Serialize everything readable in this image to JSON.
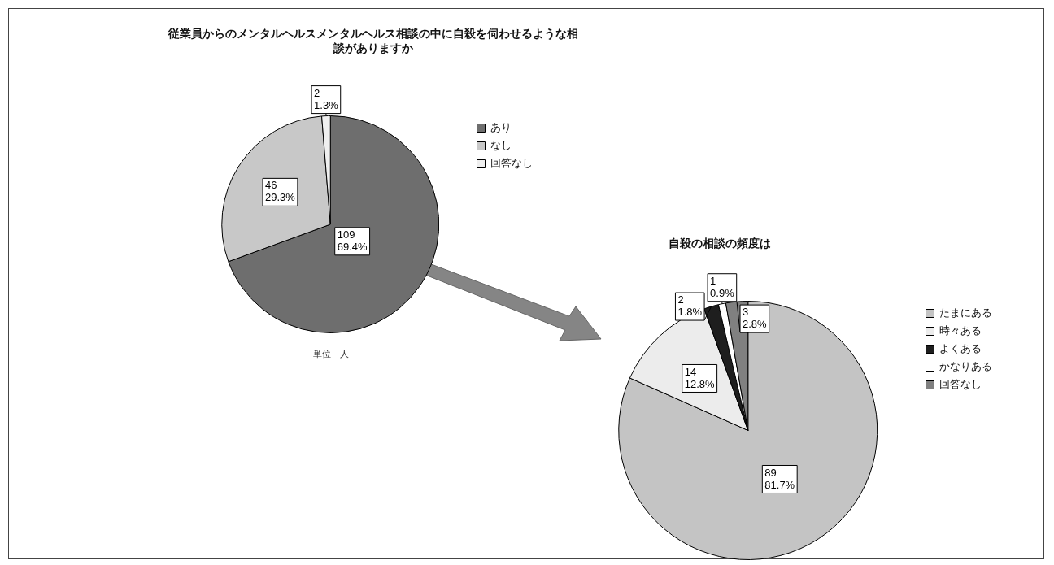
{
  "chart_data": [
    {
      "type": "pie",
      "title": "従業員からのメンタルヘルスメンタルヘルス相談の中に自殺を伺わせるような相談がありますか",
      "categories": [
        "あり",
        "なし",
        "回答なし"
      ],
      "values": [
        109,
        46,
        2
      ],
      "colors": [
        "#6e6e6e",
        "#c8c8c8",
        "#efefef"
      ],
      "value_labels": [
        "109\n69.4%",
        "46\n29.3%",
        "2\n1.3%"
      ],
      "legend": "right",
      "annotations": [
        "単位　人"
      ]
    },
    {
      "type": "pie",
      "title": "自殺の相談の頻度は",
      "categories": [
        "たまにある",
        "時々ある",
        "よくある",
        "かなりある",
        "回答なし"
      ],
      "values": [
        89,
        14,
        2,
        1,
        3
      ],
      "colors": [
        "#c4c4c4",
        "#ececec",
        "#1e1e1e",
        "#ffffff",
        "#808080"
      ],
      "value_labels": [
        "89\n81.7%",
        "14\n12.8%",
        "2\n1.8%",
        "1\n0.9%",
        "3\n2.8%"
      ],
      "legend": "right"
    }
  ]
}
